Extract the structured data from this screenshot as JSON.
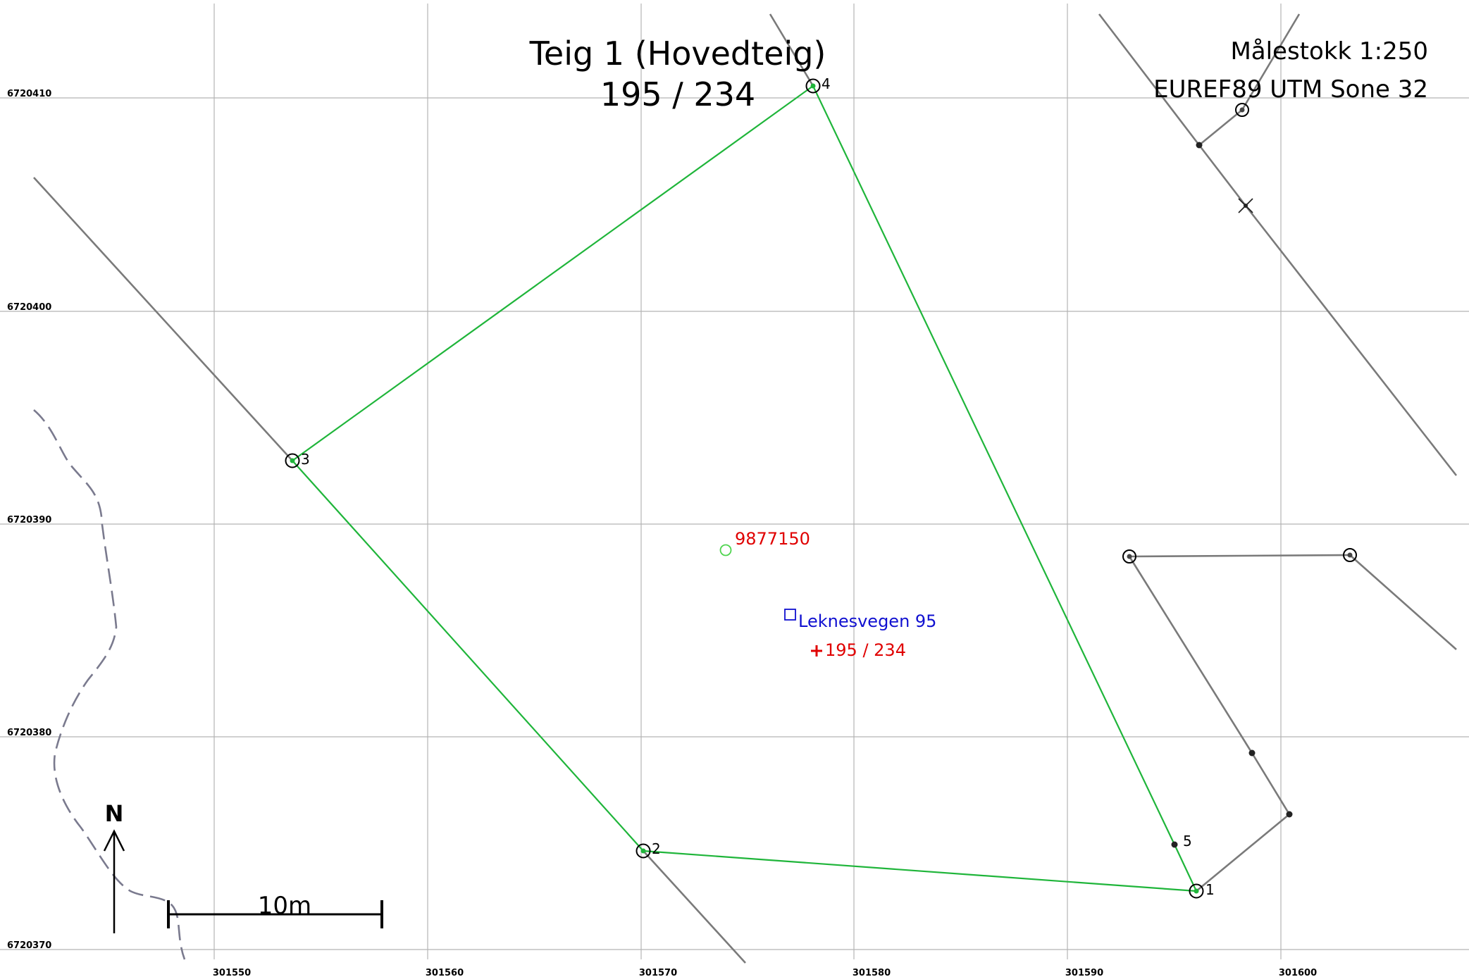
{
  "title": {
    "line1": "Teig 1 (Hovedteig)",
    "line2": "195 / 234"
  },
  "info": {
    "scale": "Målestokk 1:250",
    "crs": "EUREF89 UTM Sone 32"
  },
  "grid": {
    "easting_ticks": [
      "301550",
      "301560",
      "301570",
      "301580",
      "301590",
      "301600"
    ],
    "northing_ticks": [
      "6720410",
      "6720400",
      "6720390",
      "6720380",
      "6720370"
    ]
  },
  "parcel_points": [
    {
      "label": "1"
    },
    {
      "label": "2"
    },
    {
      "label": "3"
    },
    {
      "label": "4"
    },
    {
      "label": "5"
    }
  ],
  "features": {
    "building_id": "9877150",
    "address": "Leknesvegen 95",
    "parcel_label": "195 / 234"
  },
  "scale_bar": {
    "label": "10m"
  },
  "north_arrow": {
    "label": "N"
  },
  "colors": {
    "parcel_boundary": "#1fb53a",
    "neighbor_boundary": "#7a7a7a",
    "building_label": "#e00000",
    "address_label": "#1010d0",
    "parcel_marker": "#e00000"
  }
}
